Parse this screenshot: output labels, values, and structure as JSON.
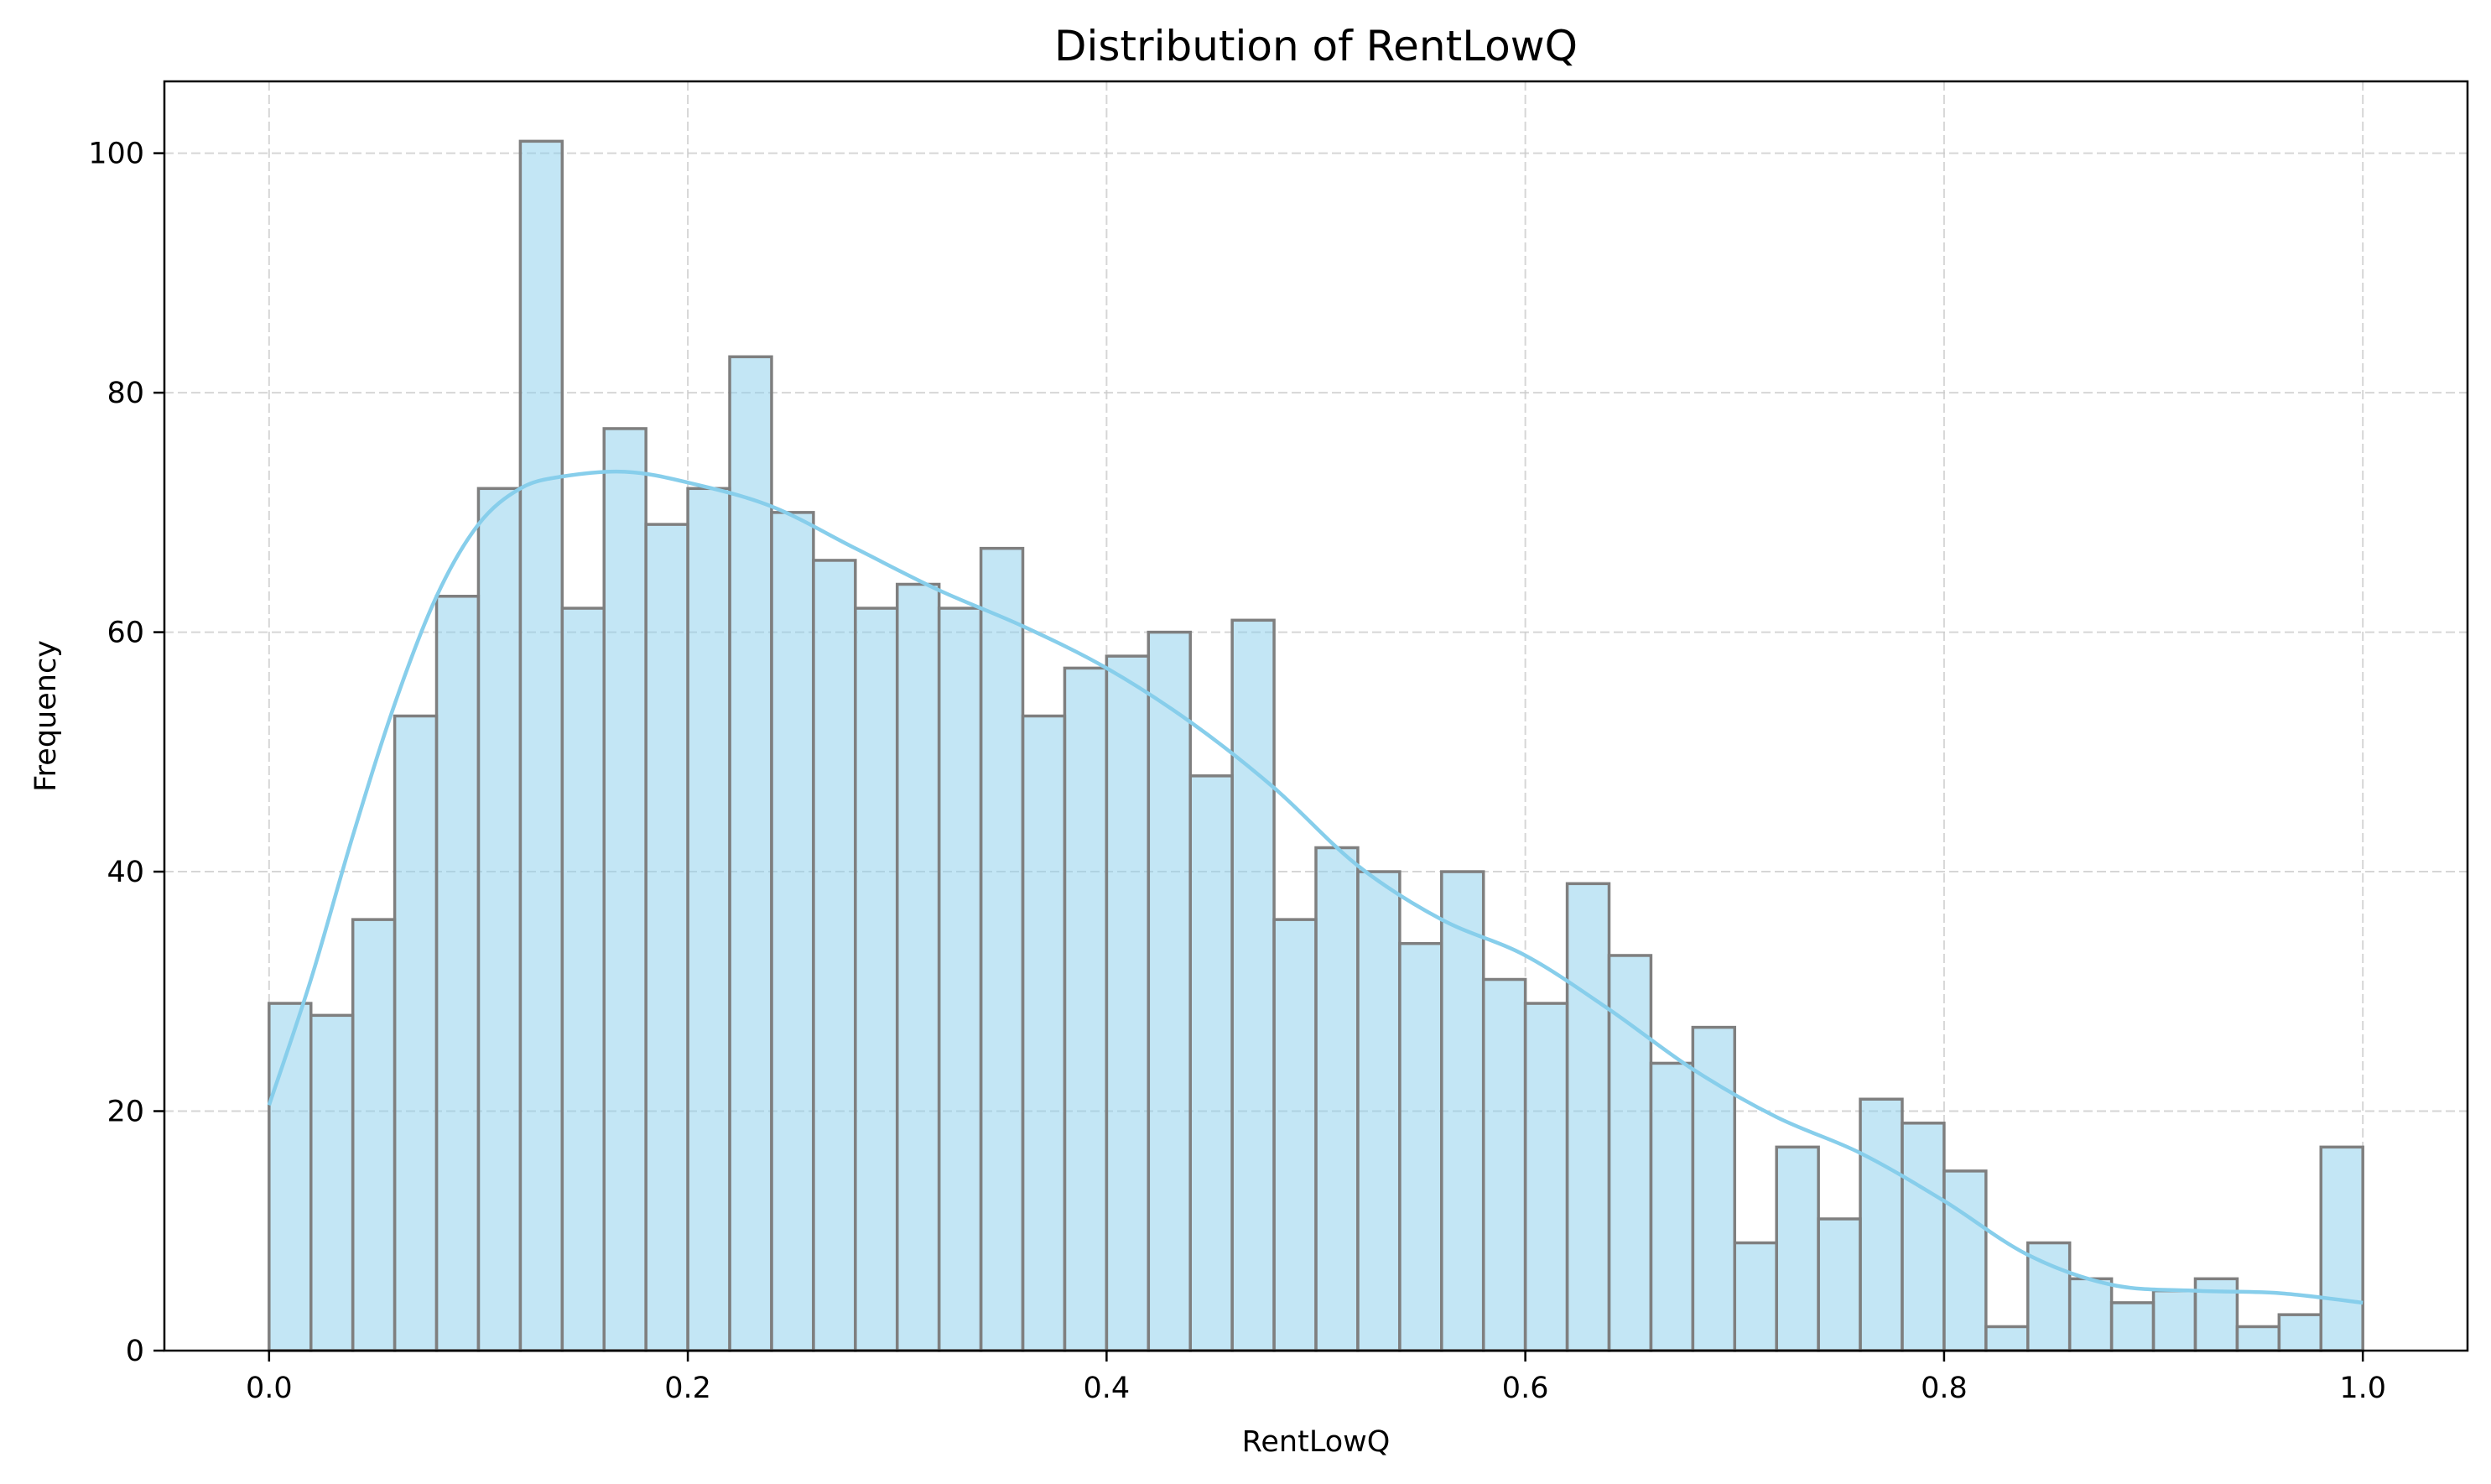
{
  "chart_data": {
    "type": "bar",
    "title": "Distribution of RentLowQ",
    "xlabel": "RentLowQ",
    "ylabel": "Frequency",
    "xlim": [
      -0.05,
      1.05
    ],
    "ylim": [
      0,
      106
    ],
    "xticks": [
      0.0,
      0.2,
      0.4,
      0.6,
      0.8,
      1.0
    ],
    "xtick_labels": [
      "0.0",
      "0.2",
      "0.4",
      "0.6",
      "0.8",
      "1.0"
    ],
    "yticks": [
      0,
      20,
      40,
      60,
      80,
      100
    ],
    "ytick_labels": [
      "0",
      "20",
      "40",
      "60",
      "80",
      "100"
    ],
    "grid": true,
    "bins": {
      "start": 0.0,
      "end": 1.0,
      "counts": [
        29,
        28,
        36,
        53,
        63,
        72,
        101,
        62,
        77,
        69,
        72,
        83,
        70,
        66,
        62,
        64,
        62,
        67,
        53,
        57,
        58,
        60,
        48,
        61,
        36,
        42,
        40,
        34,
        40,
        31,
        29,
        39,
        33,
        24,
        27,
        9,
        17,
        11,
        21,
        19,
        15,
        2,
        9,
        6,
        4,
        5,
        6,
        2,
        3,
        17
      ]
    },
    "kde": {
      "x": [
        0.0,
        0.02,
        0.04,
        0.06,
        0.08,
        0.1,
        0.12,
        0.14,
        0.17,
        0.2,
        0.24,
        0.28,
        0.32,
        0.36,
        0.4,
        0.44,
        0.48,
        0.52,
        0.56,
        0.6,
        0.64,
        0.68,
        0.72,
        0.76,
        0.8,
        0.84,
        0.88,
        0.92,
        0.96,
        1.0
      ],
      "y": [
        20.5,
        31,
        43,
        54,
        63,
        69,
        72,
        73,
        73.4,
        72.5,
        70.5,
        67,
        63.5,
        60.5,
        57,
        52.5,
        47,
        40.5,
        36,
        33,
        28.5,
        23.5,
        19.5,
        16.5,
        12.5,
        8,
        5.5,
        5,
        4.8,
        4
      ]
    },
    "colors": {
      "bar_fill": "#87CEEB",
      "bar_edge": "#7f7f7f",
      "kde_line": "#87CEEB"
    }
  }
}
